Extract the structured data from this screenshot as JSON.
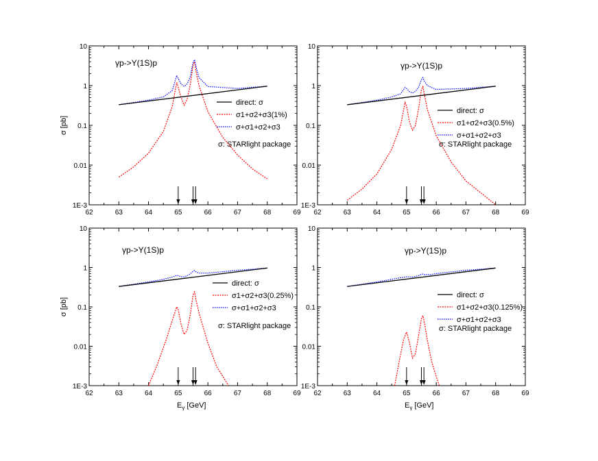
{
  "x_axis_label": "E",
  "x_axis_label_sub": "γ",
  "x_axis_label_unit": "[GeV]",
  "y_axis_label": "σ [pb]",
  "chart_data": [
    {
      "type": "line",
      "title": "γp->Υ(1S)p",
      "xlim": [
        62,
        69
      ],
      "ylim": [
        0.001,
        10
      ],
      "yscale": "log",
      "x_ticks": [
        "62",
        "63",
        "64",
        "65",
        "66",
        "67",
        "68",
        "69"
      ],
      "y_ticks": [
        "1E-3",
        "0.01",
        "0.1",
        "1",
        "10"
      ],
      "arrows_x": [
        65.0,
        65.5,
        65.55
      ],
      "series": [
        {
          "name": "direct: σ",
          "color": "#000000",
          "x": [
            63,
            68
          ],
          "y": [
            0.33,
            0.97
          ]
        },
        {
          "name": "σ1+σ2+σ3(1%)",
          "color": "#ff0000",
          "x": [
            63,
            63.5,
            64,
            64.5,
            64.8,
            64.95,
            65.0,
            65.1,
            65.2,
            65.3,
            65.4,
            65.5,
            65.55,
            65.6,
            65.7,
            66,
            66.5,
            67,
            67.5,
            68
          ],
          "y": [
            0.005,
            0.009,
            0.02,
            0.07,
            0.3,
            1.2,
            0.9,
            0.5,
            0.32,
            0.45,
            1.0,
            3.2,
            4.0,
            2.3,
            1.0,
            0.22,
            0.05,
            0.018,
            0.008,
            0.0045
          ]
        },
        {
          "name": "σ+σ1+σ2+σ3",
          "color": "#0000ff",
          "x": [
            63,
            64,
            64.5,
            64.8,
            64.95,
            65.0,
            65.1,
            65.2,
            65.3,
            65.4,
            65.5,
            65.55,
            65.6,
            65.7,
            66,
            67,
            68
          ],
          "y": [
            0.33,
            0.43,
            0.52,
            0.75,
            1.8,
            1.5,
            1.1,
            0.95,
            1.1,
            1.6,
            3.8,
            4.5,
            3.0,
            1.6,
            0.95,
            0.85,
            0.97
          ]
        }
      ],
      "note": "σ: STARlight package"
    },
    {
      "type": "line",
      "title": "γp->Υ(1S)p",
      "xlim": [
        62,
        69
      ],
      "ylim": [
        0.001,
        10
      ],
      "yscale": "log",
      "x_ticks": [
        "62",
        "63",
        "64",
        "65",
        "66",
        "67",
        "68",
        "69"
      ],
      "y_ticks": [
        "1E-3",
        "0.01",
        "0.1",
        "1",
        "10"
      ],
      "arrows_x": [
        65.0,
        65.5,
        65.55
      ],
      "series": [
        {
          "name": "direct: σ",
          "color": "#000000",
          "x": [
            63,
            68
          ],
          "y": [
            0.33,
            0.97
          ]
        },
        {
          "name": "σ1+σ2+σ3(0.5%)",
          "color": "#ff0000",
          "x": [
            63,
            63.5,
            64,
            64.5,
            64.8,
            64.95,
            65.0,
            65.1,
            65.2,
            65.3,
            65.4,
            65.5,
            65.55,
            65.6,
            65.7,
            66,
            66.5,
            67,
            67.5,
            68
          ],
          "y": [
            0.0013,
            0.0025,
            0.006,
            0.025,
            0.1,
            0.38,
            0.3,
            0.12,
            0.075,
            0.1,
            0.25,
            0.8,
            0.95,
            0.6,
            0.25,
            0.055,
            0.012,
            0.004,
            0.002,
            0.001
          ]
        },
        {
          "name": "σ+σ1+σ2+σ3",
          "color": "#0000ff",
          "x": [
            63,
            64,
            64.5,
            64.8,
            64.95,
            65.0,
            65.1,
            65.2,
            65.3,
            65.4,
            65.5,
            65.55,
            65.6,
            65.7,
            66,
            67,
            68
          ],
          "y": [
            0.33,
            0.43,
            0.52,
            0.62,
            0.9,
            0.85,
            0.7,
            0.65,
            0.72,
            0.9,
            1.4,
            1.6,
            1.3,
            1.0,
            0.8,
            0.85,
            0.97
          ]
        }
      ],
      "note": "σ: STARlight package"
    },
    {
      "type": "line",
      "title": "γp->Υ(1S)p",
      "xlim": [
        62,
        69
      ],
      "ylim": [
        0.001,
        10
      ],
      "yscale": "log",
      "x_ticks": [
        "62",
        "63",
        "64",
        "65",
        "66",
        "67",
        "68",
        "69"
      ],
      "y_ticks": [
        "1E-3",
        "0.01",
        "0.1",
        "1",
        "10"
      ],
      "arrows_x": [
        65.0,
        65.5,
        65.55
      ],
      "series": [
        {
          "name": "direct: σ",
          "color": "#000000",
          "x": [
            63,
            68
          ],
          "y": [
            0.33,
            0.97
          ]
        },
        {
          "name": "σ1+σ2+σ3(0.25%)",
          "color": "#ff0000",
          "x": [
            64.0,
            64.3,
            64.6,
            64.8,
            64.95,
            65.0,
            65.1,
            65.2,
            65.3,
            65.4,
            65.5,
            65.55,
            65.6,
            65.7,
            66,
            66.3,
            66.7
          ],
          "y": [
            0.001,
            0.0035,
            0.015,
            0.045,
            0.1,
            0.085,
            0.035,
            0.02,
            0.025,
            0.06,
            0.2,
            0.24,
            0.15,
            0.07,
            0.012,
            0.003,
            0.001
          ]
        },
        {
          "name": "σ+σ1+σ2+σ3",
          "color": "#0000ff",
          "x": [
            63,
            64,
            64.5,
            64.8,
            64.95,
            65.0,
            65.1,
            65.2,
            65.3,
            65.4,
            65.5,
            65.55,
            65.6,
            65.7,
            66,
            67,
            68
          ],
          "y": [
            0.33,
            0.43,
            0.5,
            0.57,
            0.63,
            0.62,
            0.58,
            0.58,
            0.62,
            0.68,
            0.8,
            0.84,
            0.78,
            0.72,
            0.72,
            0.85,
            0.97
          ]
        }
      ],
      "note": "σ: STARlight package"
    },
    {
      "type": "line",
      "title": "γp->Υ(1S)p",
      "xlim": [
        62,
        69
      ],
      "ylim": [
        0.001,
        10
      ],
      "yscale": "log",
      "x_ticks": [
        "62",
        "63",
        "64",
        "65",
        "66",
        "67",
        "68",
        "69"
      ],
      "y_ticks": [
        "1E-3",
        "0.01",
        "0.1",
        "1",
        "10"
      ],
      "arrows_x": [
        65.0,
        65.5,
        65.55
      ],
      "series": [
        {
          "name": "direct: σ",
          "color": "#000000",
          "x": [
            63,
            68
          ],
          "y": [
            0.33,
            0.97
          ]
        },
        {
          "name": "σ1+σ2+σ3(0.125%)",
          "color": "#ff0000",
          "x": [
            64.6,
            64.75,
            64.9,
            65.0,
            65.1,
            65.2,
            65.3,
            65.4,
            65.5,
            65.55,
            65.6,
            65.7,
            65.85,
            66.0,
            66.1
          ],
          "y": [
            0.001,
            0.004,
            0.015,
            0.023,
            0.012,
            0.005,
            0.0065,
            0.018,
            0.05,
            0.06,
            0.04,
            0.014,
            0.004,
            0.0017,
            0.001
          ]
        },
        {
          "name": "σ+σ1+σ2+σ3",
          "color": "#0000ff",
          "x": [
            63,
            64,
            64.5,
            64.8,
            65.0,
            65.2,
            65.4,
            65.5,
            65.55,
            65.6,
            65.8,
            66,
            67,
            68
          ],
          "y": [
            0.33,
            0.43,
            0.5,
            0.55,
            0.58,
            0.57,
            0.62,
            0.67,
            0.68,
            0.66,
            0.66,
            0.7,
            0.85,
            0.97
          ]
        }
      ],
      "note": "σ: STARlight package"
    }
  ]
}
